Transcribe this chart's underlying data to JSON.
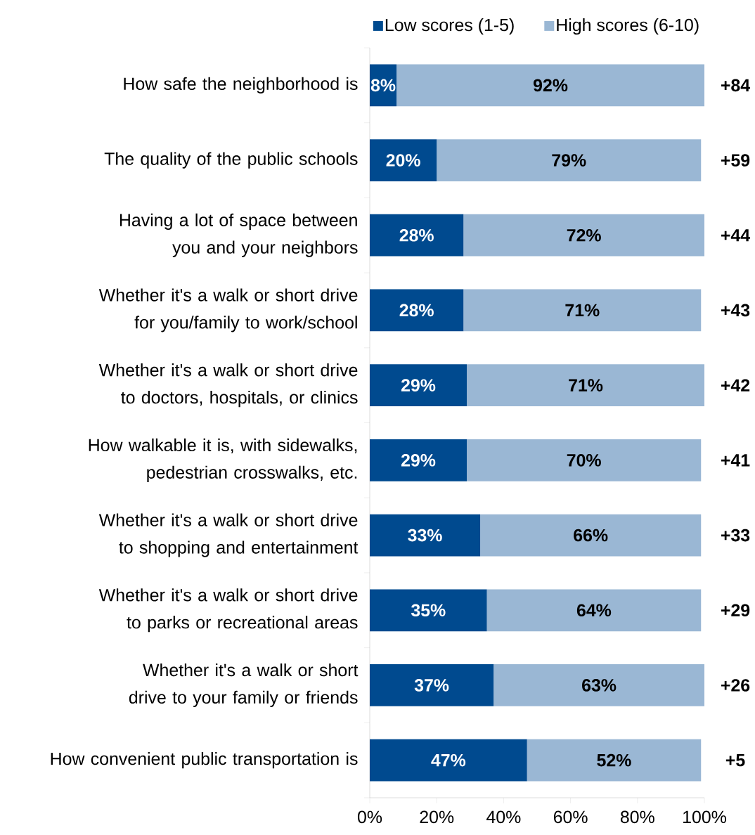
{
  "chart_data": {
    "type": "bar",
    "orientation": "horizontal",
    "stacked": true,
    "legend": "top",
    "categories": [
      "How safe the neighborhood is",
      "The quality of the public schools",
      "Having a lot of space between you and your neighbors",
      "Whether it's a walk or short drive for you/family to work/school",
      "Whether it's a walk or short drive to doctors, hospitals, or clinics",
      "How walkable it is, with sidewalks, pedestrian crosswalks, etc.",
      "Whether it's a walk or short drive to shopping and entertainment",
      "Whether it's a walk or short drive to parks or recreational areas",
      "Whether it's a walk or short drive to your family or friends",
      "How convenient public transportation is"
    ],
    "series": [
      {
        "name": "Low scores (1-5)",
        "color": "#004a8f",
        "values": [
          8,
          20,
          28,
          28,
          29,
          29,
          33,
          35,
          37,
          47
        ],
        "value_labels": [
          "8%",
          "20%",
          "28%",
          "28%",
          "29%",
          "29%",
          "33%",
          "35%",
          "37%",
          "47%"
        ]
      },
      {
        "name": "High scores (6-10)",
        "color": "#9ab7d4",
        "values": [
          92,
          79,
          72,
          71,
          71,
          70,
          66,
          64,
          63,
          52
        ],
        "value_labels": [
          "92%",
          "79%",
          "72%",
          "71%",
          "71%",
          "70%",
          "66%",
          "64%",
          "63%",
          "52%"
        ]
      }
    ],
    "xlim": [
      0,
      100
    ],
    "xticks": [
      {
        "value": 0,
        "label": "0%"
      },
      {
        "value": 20,
        "label": "20%"
      },
      {
        "value": 40,
        "label": "40%"
      },
      {
        "value": 60,
        "label": "60%"
      },
      {
        "value": 80,
        "label": "80%"
      },
      {
        "value": 100,
        "label": "100%"
      }
    ],
    "annotations": [
      "+84",
      "+59",
      "+44",
      "+43",
      "+42",
      "+41",
      "+33",
      "+29",
      "+26",
      "+5"
    ]
  }
}
